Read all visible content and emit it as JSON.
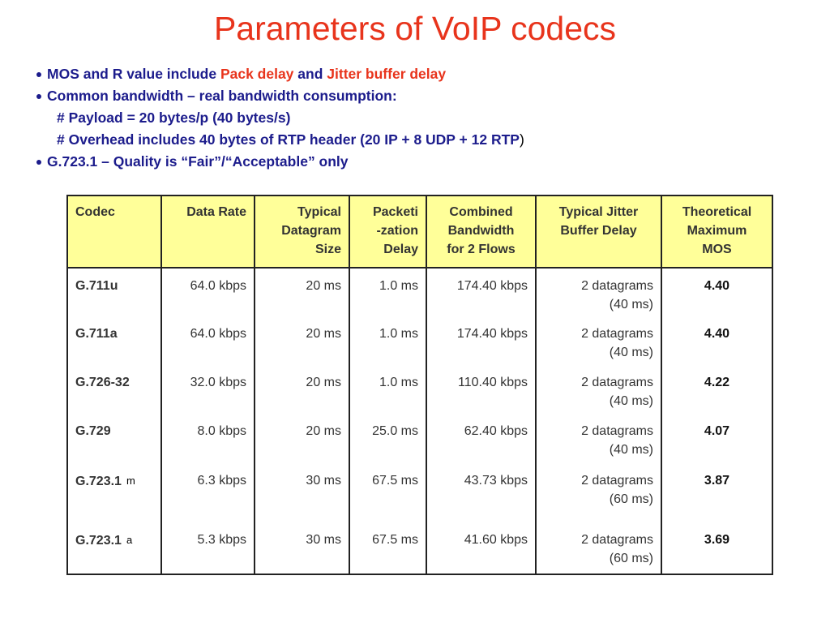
{
  "title": "Parameters of VoIP codecs",
  "bullets": [
    [
      "MOS and R value include ",
      "Pack delay",
      " and ",
      "Jitter buffer delay"
    ],
    [
      "Common bandwidth – real bandwidth consumption:"
    ],
    [
      "# Payload = 20 bytes/p (40 bytes/s)"
    ],
    [
      "# Overhead includes 40 bytes of RTP header (20 IP + 8 UDP + 12 RTP",
      ")"
    ],
    [
      "G.723.1 – Quality is “Fair”/“Acceptable” only"
    ]
  ],
  "table": {
    "header": [
      "Codec",
      "Data Rate",
      "Typical\nDatagram\nSize",
      "Packeti\n-zation\nDelay",
      "Combined\nBandwidth\nfor 2 Flows",
      "Typical Jitter\nBuffer Delay",
      "Theoretical\nMaximum\nMOS"
    ],
    "rows": [
      {
        "codec": "G.711u",
        "cells": [
          "64.0 kbps",
          "20 ms",
          "1.0 ms",
          "174.40 kbps",
          "2 datagrams\n(40 ms)",
          "4.40"
        ]
      },
      {
        "codec": "G.711a",
        "cells": [
          "64.0 kbps",
          "20 ms",
          "1.0 ms",
          "174.40 kbps",
          "2 datagrams\n(40 ms)",
          "4.40"
        ]
      },
      {
        "codec": "G.726-32",
        "cells": [
          "32.0 kbps",
          "20 ms",
          "1.0 ms",
          "110.40 kbps",
          "2 datagrams\n(40 ms)",
          "4.22"
        ]
      },
      {
        "codec": "G.729",
        "cells": [
          "8.0 kbps",
          "20 ms",
          "25.0 ms",
          "62.40 kbps",
          "2 datagrams\n(40 ms)",
          "4.07"
        ]
      },
      {
        "codec": "G.723.1",
        "suffix": "m",
        "cells": [
          "6.3 kbps",
          "30 ms",
          "67.5 ms",
          "43.73 kbps",
          "2 datagrams\n(60 ms)",
          "3.87"
        ]
      },
      {
        "codec": "G.723.1",
        "suffix": "a",
        "cells": [
          "5.3 kbps",
          "30 ms",
          "67.5 ms",
          "41.60 kbps",
          "2 datagrams\n(60 ms)",
          "3.69"
        ]
      }
    ]
  }
}
